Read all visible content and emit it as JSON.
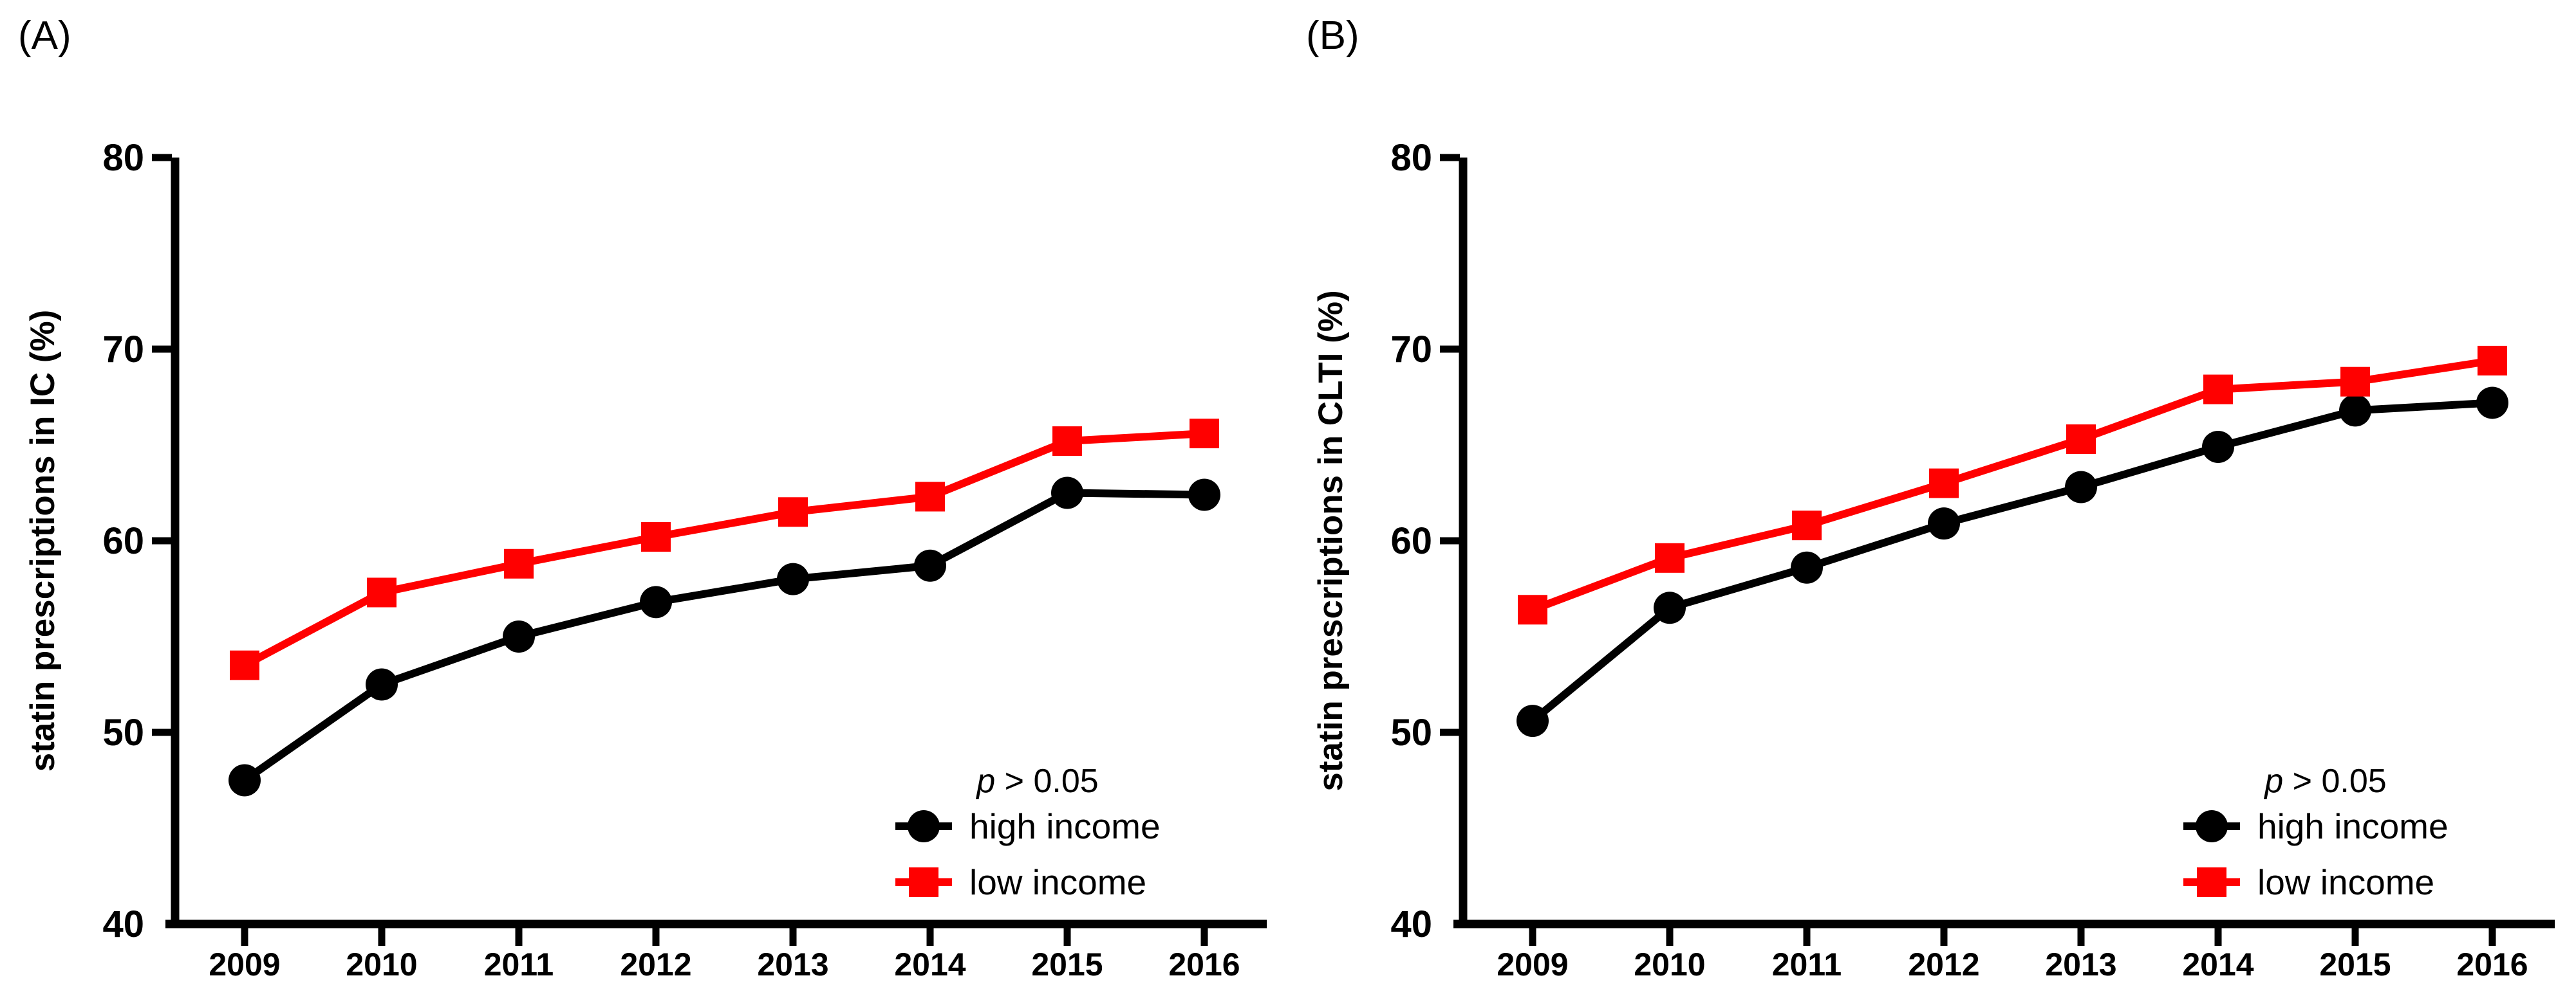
{
  "figure": {
    "background_color": "#ffffff",
    "axis_color": "#000000"
  },
  "chart_data": [
    {
      "type": "line",
      "panel_label": "(A)",
      "ylabel": "statin prescriptions in IC (%)",
      "xlabel": "",
      "ylim": [
        40,
        80
      ],
      "yticks": [
        40,
        50,
        60,
        70,
        80
      ],
      "grid": false,
      "annotation": "p > 0.05",
      "legend_position": "lower right",
      "categories": [
        "2009",
        "2010",
        "2011",
        "2012",
        "2013",
        "2014",
        "2015",
        "2016"
      ],
      "series": [
        {
          "name": "high income",
          "color": "#000000",
          "marker": "circle",
          "values": [
            47.5,
            52.5,
            55.0,
            56.8,
            58.0,
            58.7,
            62.5,
            62.4
          ]
        },
        {
          "name": "low income",
          "color": "#FF0000",
          "marker": "square",
          "values": [
            53.5,
            57.3,
            58.8,
            60.2,
            61.5,
            62.3,
            65.2,
            65.6
          ]
        }
      ]
    },
    {
      "type": "line",
      "panel_label": "(B)",
      "ylabel": "statin prescriptions in CLTI (%)",
      "xlabel": "",
      "ylim": [
        40,
        80
      ],
      "yticks": [
        40,
        50,
        60,
        70,
        80
      ],
      "grid": false,
      "annotation": "p > 0.05",
      "legend_position": "lower right",
      "categories": [
        "2009",
        "2010",
        "2011",
        "2012",
        "2013",
        "2014",
        "2015",
        "2016"
      ],
      "series": [
        {
          "name": "high income",
          "color": "#000000",
          "marker": "circle",
          "values": [
            50.6,
            56.5,
            58.6,
            60.9,
            62.8,
            64.9,
            66.8,
            67.2
          ]
        },
        {
          "name": "low income",
          "color": "#FF0000",
          "marker": "square",
          "values": [
            56.4,
            59.1,
            60.8,
            63.0,
            65.3,
            67.9,
            68.3,
            69.4
          ]
        }
      ]
    }
  ]
}
